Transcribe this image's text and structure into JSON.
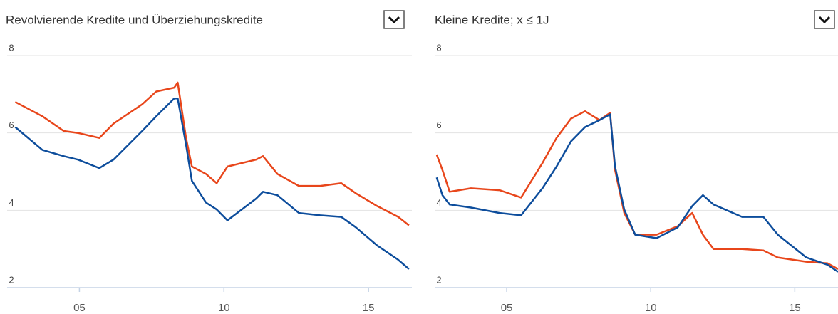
{
  "chart_data": [
    {
      "type": "line",
      "title": "Revolvierende Kredite und Überziehungskredite",
      "x": [
        2002.78,
        2003.72,
        2004.46,
        2004.95,
        2005.69,
        2006.18,
        2007.17,
        2007.66,
        2008.28,
        2008.4,
        2008.69,
        2008.89,
        2009.38,
        2009.75,
        2010.12,
        2011.11,
        2011.35,
        2011.85,
        2012.59,
        2013.33,
        2014.06,
        2014.56,
        2015.3,
        2016.03,
        2016.4
      ],
      "series": [
        {
          "color": "#e8461b",
          "values": [
            6.8,
            6.43,
            6.05,
            6.0,
            5.87,
            6.24,
            6.74,
            7.07,
            7.17,
            7.3,
            5.87,
            5.13,
            4.94,
            4.7,
            5.13,
            5.31,
            5.4,
            4.94,
            4.63,
            4.63,
            4.7,
            4.44,
            4.11,
            3.83,
            3.61
          ]
        },
        {
          "color": "#0d4d9c",
          "values": [
            6.15,
            5.56,
            5.4,
            5.31,
            5.09,
            5.31,
            6.05,
            6.43,
            6.89,
            6.89,
            5.69,
            4.76,
            4.2,
            4.02,
            3.74,
            4.3,
            4.48,
            4.39,
            3.93,
            3.87,
            3.83,
            3.56,
            3.09,
            2.72,
            2.48
          ]
        }
      ],
      "xlim": [
        2002.5,
        2016.5
      ],
      "ylim": [
        2,
        8
      ],
      "xticks": [
        {
          "value": 2005,
          "label": "05"
        },
        {
          "value": 2010,
          "label": "10"
        },
        {
          "value": 2015,
          "label": "15"
        }
      ],
      "yticks": [
        2,
        4,
        6,
        8
      ],
      "grid": true
    },
    {
      "type": "line",
      "title": "Kleine Kredite; x ≤ 1J",
      "x": [
        2002.57,
        2002.77,
        2003.02,
        2003.76,
        2004.75,
        2005.5,
        2006.24,
        2006.73,
        2007.23,
        2007.72,
        2008.22,
        2008.59,
        2008.76,
        2009.08,
        2009.46,
        2010.2,
        2010.94,
        2011.44,
        2011.81,
        2012.18,
        2013.17,
        2013.91,
        2014.41,
        2015.4,
        2016.14,
        2016.5
      ],
      "series": [
        {
          "color": "#e8461b",
          "values": [
            5.44,
            5.04,
            4.48,
            4.57,
            4.52,
            4.33,
            5.22,
            5.87,
            6.37,
            6.56,
            6.33,
            6.52,
            5.04,
            3.93,
            3.37,
            3.37,
            3.59,
            3.93,
            3.37,
            3.0,
            3.0,
            2.96,
            2.78,
            2.67,
            2.63,
            2.48
          ]
        },
        {
          "color": "#0d4d9c",
          "values": [
            4.85,
            4.39,
            4.15,
            4.07,
            3.93,
            3.87,
            4.57,
            5.13,
            5.78,
            6.15,
            6.33,
            6.48,
            5.13,
            4.02,
            3.37,
            3.28,
            3.56,
            4.11,
            4.39,
            4.15,
            3.83,
            3.83,
            3.37,
            2.78,
            2.59,
            2.41
          ]
        }
      ],
      "xlim": [
        2002.5,
        2016.5
      ],
      "ylim": [
        2,
        8
      ],
      "xticks": [
        {
          "value": 2005,
          "label": "05"
        },
        {
          "value": 2010,
          "label": "10"
        },
        {
          "value": 2015,
          "label": "15"
        }
      ],
      "yticks": [
        2,
        4,
        6,
        8
      ],
      "grid": true
    }
  ]
}
